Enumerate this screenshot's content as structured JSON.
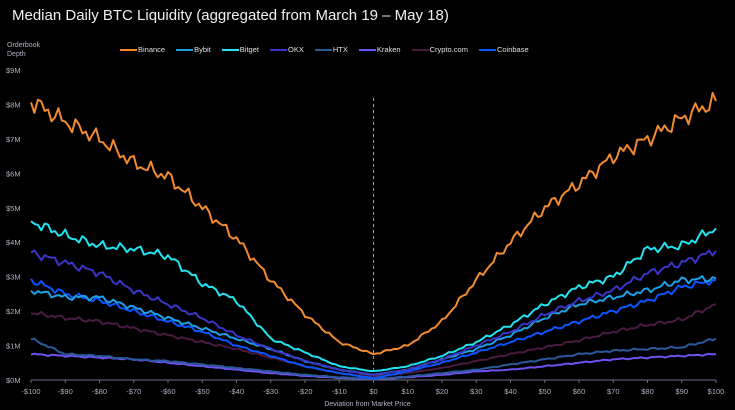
{
  "chart_data": {
    "type": "line",
    "title": "Median Daily BTC Liquidity (aggregated from March 19 – May 18)",
    "ylabel": "Orderbook Depth",
    "xlabel": "Deviation from Market Price",
    "xlim": [
      -100,
      100
    ],
    "ylim": [
      0,
      9
    ],
    "x_ticks": [
      "-$100",
      "-$90",
      "-$80",
      "-$70",
      "-$60",
      "-$50",
      "-$40",
      "-$30",
      "-$20",
      "-$10",
      "$0",
      "$10",
      "$20",
      "$30",
      "$40",
      "$50",
      "$60",
      "$70",
      "$80",
      "$90",
      "$100"
    ],
    "y_ticks": [
      "$0M",
      "$1M",
      "$2M",
      "$3M",
      "$4M",
      "$5M",
      "$6M",
      "$7M",
      "$8M",
      "$9M"
    ],
    "grid": false,
    "legend_position": "top",
    "reference_line_x": 0,
    "x": [
      -100,
      -90,
      -80,
      -70,
      -60,
      -50,
      -40,
      -30,
      -20,
      -10,
      0,
      10,
      20,
      30,
      40,
      50,
      60,
      70,
      80,
      90,
      100
    ],
    "series": [
      {
        "name": "Binance",
        "color": "#f28a30",
        "values": [
          8.1,
          7.5,
          7.0,
          6.3,
          5.9,
          5.0,
          4.1,
          2.9,
          1.9,
          1.1,
          0.75,
          1.0,
          1.7,
          2.9,
          4.0,
          5.0,
          5.7,
          6.5,
          7.0,
          7.6,
          8.1
        ]
      },
      {
        "name": "Bybit",
        "color": "#1ea0e6",
        "values": [
          2.6,
          2.4,
          2.4,
          2.1,
          1.8,
          1.5,
          1.2,
          0.9,
          0.55,
          0.3,
          0.15,
          0.3,
          0.6,
          0.9,
          1.3,
          1.8,
          2.2,
          2.4,
          2.6,
          2.9,
          2.95
        ]
      },
      {
        "name": "Bitget",
        "color": "#22e3f0",
        "values": [
          4.6,
          4.2,
          3.9,
          3.8,
          3.6,
          2.8,
          2.3,
          1.2,
          0.8,
          0.4,
          0.25,
          0.4,
          0.7,
          1.1,
          1.6,
          2.2,
          2.7,
          3.0,
          3.8,
          3.9,
          4.4
        ]
      },
      {
        "name": "OKX",
        "color": "#3a35c8",
        "values": [
          3.7,
          3.4,
          3.1,
          2.6,
          2.2,
          1.8,
          1.3,
          0.9,
          0.55,
          0.3,
          0.15,
          0.3,
          0.6,
          1.0,
          1.4,
          1.9,
          2.3,
          2.6,
          3.1,
          3.4,
          3.75
        ]
      },
      {
        "name": "HTX",
        "color": "#2a5a9a",
        "values": [
          1.2,
          0.75,
          0.7,
          0.6,
          0.55,
          0.45,
          0.35,
          0.25,
          0.15,
          0.08,
          0.03,
          0.1,
          0.2,
          0.3,
          0.45,
          0.6,
          0.75,
          0.85,
          0.9,
          0.95,
          1.2
        ]
      },
      {
        "name": "Kraken",
        "color": "#7050f0",
        "values": [
          0.75,
          0.7,
          0.65,
          0.6,
          0.5,
          0.4,
          0.3,
          0.2,
          0.12,
          0.06,
          0.02,
          0.08,
          0.15,
          0.25,
          0.3,
          0.4,
          0.5,
          0.6,
          0.65,
          0.7,
          0.75
        ]
      },
      {
        "name": "Crypto.com",
        "color": "#4a1a40",
        "values": [
          1.95,
          1.8,
          1.7,
          1.5,
          1.3,
          1.1,
          0.9,
          0.65,
          0.4,
          0.2,
          0.1,
          0.2,
          0.35,
          0.55,
          0.75,
          0.95,
          1.15,
          1.4,
          1.6,
          1.75,
          2.2
        ]
      },
      {
        "name": "Coinbase",
        "color": "#0a55ff",
        "values": [
          2.9,
          2.5,
          2.3,
          2.0,
          1.7,
          1.4,
          1.0,
          0.7,
          0.4,
          0.2,
          0.05,
          0.25,
          0.5,
          0.8,
          1.1,
          1.4,
          1.7,
          2.0,
          2.3,
          2.7,
          2.9
        ]
      }
    ]
  }
}
